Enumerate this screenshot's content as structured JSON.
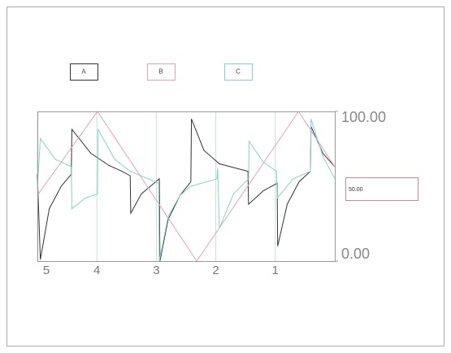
{
  "chart_data": {
    "type": "line",
    "series": [
      {
        "name": "A",
        "color": "#333333",
        "x": [
          5.0,
          4.95,
          4.8,
          4.6,
          4.43,
          4.42,
          4.1,
          3.8,
          3.58,
          3.44,
          3.43,
          3.25,
          2.95,
          2.94,
          2.8,
          2.6,
          2.42,
          2.41,
          2.2,
          1.94,
          1.46,
          1.45,
          1.2,
          0.97,
          0.96,
          0.8,
          0.6,
          0.41,
          0.4,
          0.2,
          0.0
        ],
        "values": [
          58,
          1,
          35,
          50,
          58,
          88,
          72,
          64,
          60,
          57,
          32,
          45,
          55,
          0,
          28,
          44,
          53,
          95,
          74,
          65,
          60,
          38,
          47,
          52,
          10,
          38,
          53,
          60,
          90,
          72,
          63
        ]
      },
      {
        "name": "B",
        "color": "#e8a2b4",
        "x": [
          5.0,
          3.99,
          2.32,
          0.61,
          0.0
        ],
        "values": [
          44,
          100,
          0,
          100,
          63
        ]
      },
      {
        "name": "C",
        "color": "#86d2c8",
        "x": [
          5.0,
          4.95,
          4.7,
          4.43,
          4.42,
          4.2,
          3.99,
          3.98,
          3.7,
          3.44,
          2.96,
          2.95,
          2.8,
          2.6,
          2.42,
          1.98,
          1.97,
          1.94,
          1.7,
          1.45,
          1.44,
          1.2,
          0.98,
          0.97,
          0.7,
          0.41,
          0.4,
          0.2,
          0.0
        ],
        "values": [
          49,
          82,
          68,
          63,
          35,
          42,
          45,
          88,
          68,
          60,
          52,
          0,
          30,
          44,
          50,
          55,
          62,
          22,
          45,
          55,
          80,
          66,
          60,
          42,
          55,
          60,
          95,
          70,
          55
        ]
      }
    ],
    "xlim": [
      5,
      0
    ],
    "xticks": [
      5,
      4,
      3,
      2,
      1
    ],
    "ylim": [
      0,
      100
    ],
    "yticks": [
      {
        "value": 0,
        "label": "0.00"
      },
      {
        "value": 100,
        "label": "100.00"
      }
    ],
    "grid": true,
    "readout": "50.00"
  }
}
